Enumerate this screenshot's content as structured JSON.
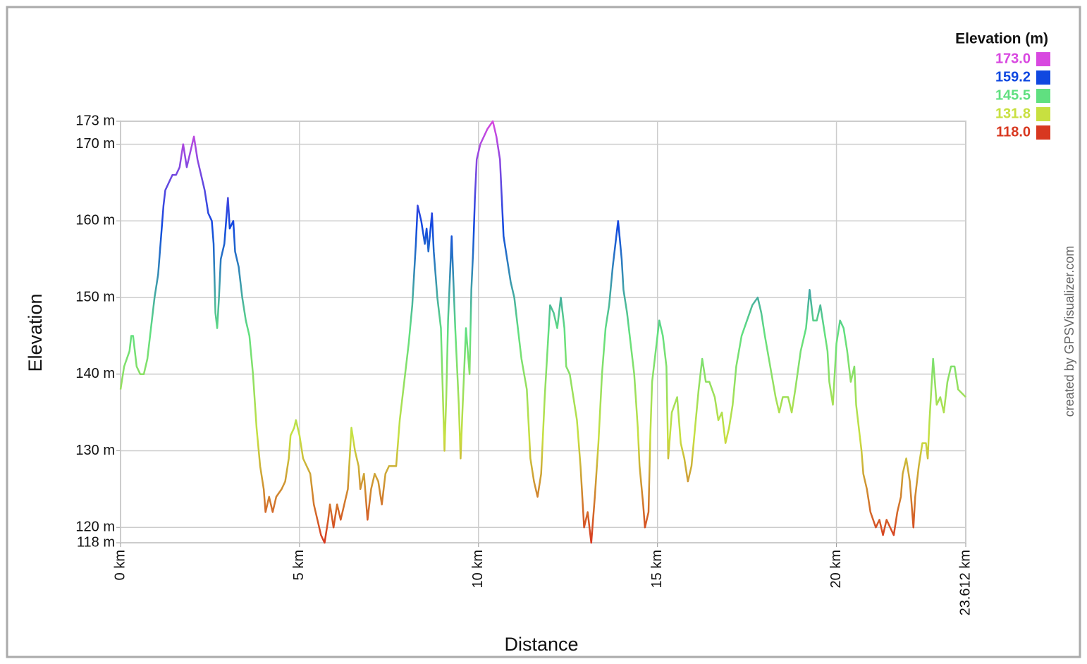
{
  "chart_data": {
    "type": "line",
    "ylabel": "Elevation",
    "xlabel": "Distance",
    "credit": "created by GPSVisualizer.com",
    "xlim": [
      0,
      23.612
    ],
    "ylim": [
      118,
      173
    ],
    "xticks": [
      {
        "value": 0,
        "label": "0 km"
      },
      {
        "value": 5,
        "label": "5 km"
      },
      {
        "value": 10,
        "label": "10 km"
      },
      {
        "value": 15,
        "label": "15 km"
      },
      {
        "value": 20,
        "label": "20 km"
      },
      {
        "value": 23.612,
        "label": "23.612 km"
      }
    ],
    "yticks": [
      {
        "value": 118,
        "label": "118 m"
      },
      {
        "value": 120,
        "label": "120 m"
      },
      {
        "value": 130,
        "label": "130 m"
      },
      {
        "value": 140,
        "label": "140 m"
      },
      {
        "value": 150,
        "label": "150 m"
      },
      {
        "value": 160,
        "label": "160 m"
      },
      {
        "value": 170,
        "label": "170 m"
      },
      {
        "value": 173,
        "label": "173 m"
      }
    ],
    "grid": true,
    "color_scale": {
      "title": "Elevation (m)",
      "stops": [
        {
          "value": 173,
          "label": "173.0",
          "color": "#d848e0"
        },
        {
          "value": 159.2,
          "label": "159.2",
          "color": "#1048e0"
        },
        {
          "value": 145.5,
          "label": "145.5",
          "color": "#60e080"
        },
        {
          "value": 131.8,
          "label": "131.8",
          "color": "#c8e040"
        },
        {
          "value": 118,
          "label": "118.0",
          "color": "#d83820"
        }
      ]
    },
    "x": [
      0,
      0.1,
      0.25,
      0.3,
      0.35,
      0.45,
      0.55,
      0.65,
      0.75,
      0.85,
      0.95,
      1.05,
      1.1,
      1.2,
      1.25,
      1.35,
      1.45,
      1.55,
      1.65,
      1.75,
      1.85,
      1.95,
      2.05,
      2.15,
      2.25,
      2.35,
      2.45,
      2.55,
      2.6,
      2.65,
      2.7,
      2.75,
      2.8,
      2.9,
      2.95,
      3.0,
      3.05,
      3.15,
      3.2,
      3.3,
      3.4,
      3.5,
      3.6,
      3.7,
      3.8,
      3.9,
      4.0,
      4.05,
      4.15,
      4.25,
      4.35,
      4.5,
      4.6,
      4.7,
      4.75,
      4.85,
      4.9,
      5.0,
      5.1,
      5.2,
      5.3,
      5.4,
      5.5,
      5.6,
      5.7,
      5.8,
      5.85,
      5.95,
      6.05,
      6.15,
      6.25,
      6.35,
      6.45,
      6.55,
      6.65,
      6.7,
      6.8,
      6.9,
      7.0,
      7.1,
      7.2,
      7.3,
      7.4,
      7.5,
      7.7,
      7.8,
      7.95,
      8.05,
      8.15,
      8.25,
      8.3,
      8.4,
      8.5,
      8.55,
      8.6,
      8.7,
      8.75,
      8.85,
      8.95,
      9.0,
      9.05,
      9.1,
      9.15,
      9.25,
      9.3,
      9.35,
      9.45,
      9.5,
      9.55,
      9.65,
      9.75,
      9.8,
      9.85,
      9.9,
      9.95,
      10.05,
      10.15,
      10.25,
      10.4,
      10.5,
      10.6,
      10.7,
      10.8,
      10.9,
      11.0,
      11.1,
      11.2,
      11.35,
      11.45,
      11.55,
      11.65,
      11.75,
      11.85,
      12.0,
      12.1,
      12.2,
      12.3,
      12.4,
      12.45,
      12.55,
      12.65,
      12.75,
      12.85,
      12.9,
      12.95,
      13.05,
      13.15,
      13.25,
      13.35,
      13.45,
      13.55,
      13.65,
      13.75,
      13.9,
      14.0,
      14.05,
      14.15,
      14.25,
      14.35,
      14.45,
      14.5,
      14.6,
      14.65,
      14.75,
      14.8,
      14.85,
      14.95,
      15.05,
      15.15,
      15.25,
      15.3,
      15.4,
      15.55,
      15.65,
      15.75,
      15.85,
      15.95,
      16.05,
      16.15,
      16.25,
      16.35,
      16.45,
      16.6,
      16.7,
      16.8,
      16.9,
      17.0,
      17.1,
      17.2,
      17.35,
      17.5,
      17.65,
      17.8,
      17.9,
      18.0,
      18.15,
      18.3,
      18.4,
      18.5,
      18.65,
      18.75,
      18.85,
      19.0,
      19.15,
      19.25,
      19.35,
      19.45,
      19.55,
      19.65,
      19.75,
      19.8,
      19.9,
      20.0,
      20.1,
      20.2,
      20.3,
      20.4,
      20.5,
      20.55,
      20.7,
      20.75,
      20.85,
      20.95,
      21.1,
      21.2,
      21.3,
      21.4,
      21.5,
      21.6,
      21.7,
      21.8,
      21.85,
      21.95,
      22.05,
      22.1,
      22.15,
      22.2,
      22.3,
      22.4,
      22.5,
      22.55,
      22.6,
      22.7,
      22.8,
      22.9,
      23.0,
      23.1,
      23.2,
      23.3,
      23.4,
      23.612
    ],
    "values": [
      138,
      141,
      143,
      145,
      145,
      141,
      140,
      140,
      142,
      146,
      150,
      153,
      156,
      162,
      164,
      165,
      166,
      166,
      167,
      170,
      167,
      169,
      171,
      168,
      166,
      164,
      161,
      160,
      157,
      148,
      146,
      150,
      155,
      157,
      160,
      163,
      159,
      160,
      156,
      154,
      150,
      147,
      145,
      140,
      133,
      128,
      125,
      122,
      124,
      122,
      124,
      125,
      126,
      129,
      132,
      133,
      134,
      132,
      129,
      128,
      127,
      123,
      121,
      119,
      118,
      121,
      123,
      120,
      123,
      121,
      123,
      125,
      133,
      130,
      128,
      125,
      127,
      121,
      125,
      127,
      126,
      123,
      127,
      128,
      128,
      134,
      140,
      144,
      149,
      157,
      162,
      160,
      157,
      159,
      156,
      161,
      156,
      150,
      146,
      138,
      130,
      137,
      147,
      158,
      152,
      146,
      136,
      129,
      135,
      146,
      140,
      151,
      156,
      163,
      168,
      170,
      171,
      172,
      173,
      171,
      168,
      158,
      155,
      152,
      150,
      146,
      142,
      138,
      129,
      126,
      124,
      127,
      137,
      149,
      148,
      146,
      150,
      146,
      141,
      140,
      137,
      134,
      128,
      124,
      120,
      122,
      118,
      124,
      131,
      140,
      146,
      149,
      154,
      160,
      155,
      151,
      148,
      144,
      140,
      133,
      128,
      123,
      120,
      122,
      132,
      139,
      143,
      147,
      145,
      141,
      129,
      135,
      137,
      131,
      129,
      126,
      128,
      133,
      138,
      142,
      139,
      139,
      137,
      134,
      135,
      131,
      133,
      136,
      141,
      145,
      147,
      149,
      150,
      148,
      145,
      141,
      137,
      135,
      137,
      137,
      135,
      138,
      143,
      146,
      151,
      147,
      147,
      149,
      146,
      143,
      139,
      136,
      144,
      147,
      146,
      143,
      139,
      141,
      136,
      130,
      127,
      125,
      122,
      120,
      121,
      119,
      121,
      120,
      119,
      122,
      124,
      127,
      129,
      126,
      123,
      120,
      124,
      128,
      131,
      131,
      129,
      134,
      142,
      136,
      137,
      135,
      139,
      141,
      141,
      138,
      137
    ]
  }
}
